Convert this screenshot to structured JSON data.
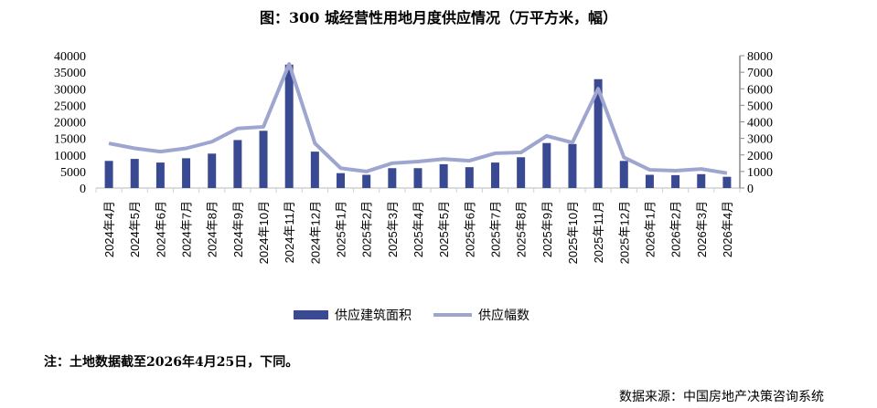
{
  "title": "图：300 城经营性用地月度供应情况（万平方米，幅）",
  "note": "注：土地数据截至2026年4月25日，下同。",
  "source": "数据来源：中国房地产决策咨询系统",
  "chart_data": {
    "type": "bar+line",
    "title": "图：300 城经营性用地月度供应情况（万平方米，幅）",
    "categories": [
      "2024年4月",
      "2024年5月",
      "2024年6月",
      "2024年7月",
      "2024年8月",
      "2024年9月",
      "2024年10月",
      "2024年11月",
      "2024年12月",
      "2025年1月",
      "2025年2月",
      "2025年3月",
      "2025年4月",
      "2025年5月",
      "2025年6月",
      "2025年7月",
      "2025年8月",
      "2025年9月",
      "2025年10月",
      "2025年11月",
      "2025年12月",
      "2026年1月",
      "2026年2月",
      "2026年3月",
      "2026年4月"
    ],
    "series": [
      {
        "name": "供应建筑面积",
        "type": "bar",
        "axis": "left",
        "color": "#3a4a92",
        "values": [
          8200,
          8800,
          7700,
          9000,
          10400,
          14500,
          17300,
          37300,
          11000,
          4500,
          4000,
          6000,
          6000,
          7200,
          6300,
          7700,
          9300,
          13600,
          13300,
          32900,
          8200,
          4000,
          3900,
          4200,
          3400
        ]
      },
      {
        "name": "供应幅数",
        "type": "line",
        "axis": "right",
        "color": "#9ea6cf",
        "values": [
          2700,
          2400,
          2200,
          2400,
          2800,
          3600,
          3700,
          7500,
          2700,
          1200,
          1000,
          1500,
          1600,
          1750,
          1650,
          2100,
          2150,
          3150,
          2750,
          6000,
          1850,
          1100,
          1050,
          1150,
          900
        ]
      }
    ],
    "y_left": {
      "range": [
        0,
        40000
      ],
      "ticks": [
        "0",
        "5000",
        "10000",
        "15000",
        "20000",
        "25000",
        "30000",
        "35000",
        "40000"
      ]
    },
    "y_right": {
      "range": [
        0,
        8000
      ],
      "ticks": [
        "0",
        "1000",
        "2000",
        "3000",
        "4000",
        "5000",
        "6000",
        "7000",
        "8000"
      ]
    },
    "grid": false,
    "legend": "bottom"
  }
}
